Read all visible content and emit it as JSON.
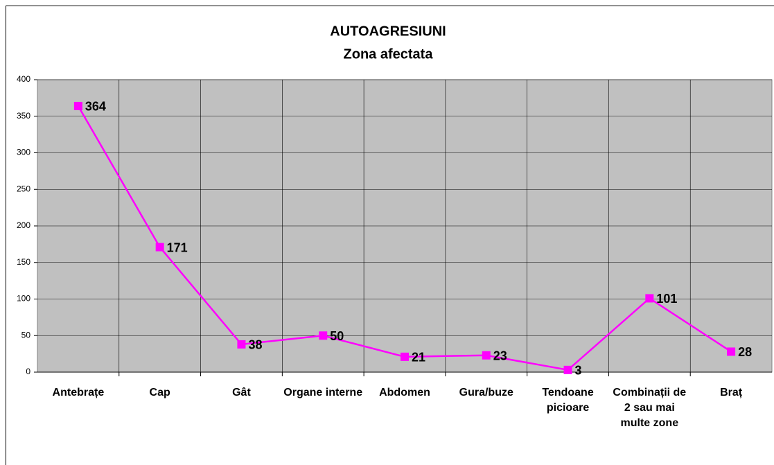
{
  "chart_data": {
    "type": "line",
    "title": [
      "AUTOAGRESIUNI",
      "Zona afectata"
    ],
    "categories": [
      "Antebrațe",
      "Cap",
      "Gât",
      "Organe interne",
      "Abdomen",
      "Gura/buze",
      "Tendoane picioare",
      "Combinații de 2 sau mai multe zone",
      "Braț"
    ],
    "series": [
      {
        "color": "#ff00ff",
        "values": [
          364,
          171,
          38,
          50,
          21,
          23,
          3,
          101,
          28
        ]
      }
    ],
    "ylim": [
      0,
      400
    ],
    "yticks": [
      0,
      50,
      100,
      150,
      200,
      250,
      300,
      350,
      400
    ],
    "grid": true,
    "plot_background": "#c0c0c0"
  }
}
